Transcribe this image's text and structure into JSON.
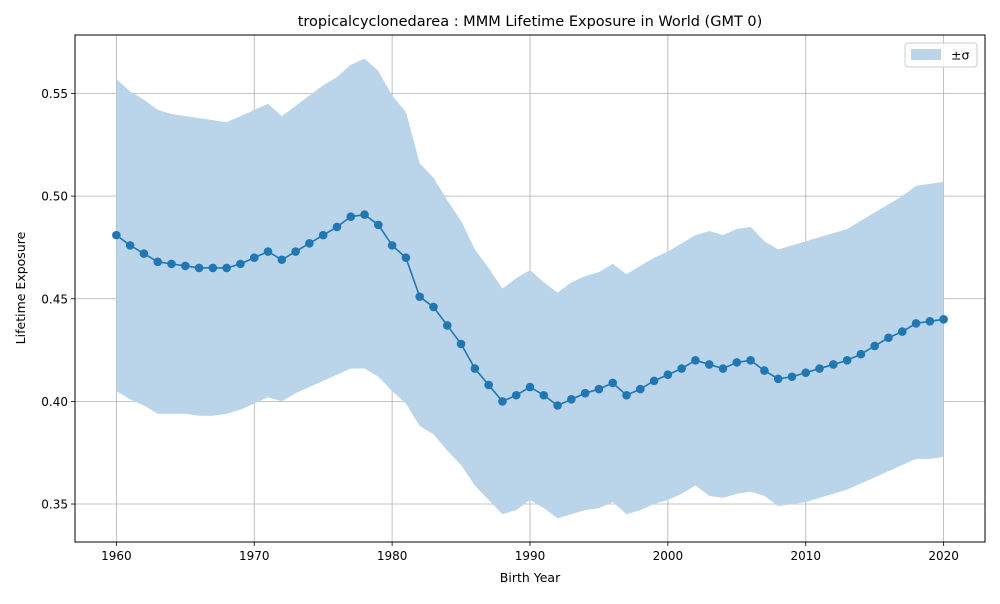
{
  "chart_data": {
    "type": "line",
    "title": "tropicalcyclonedarea : MMM Lifetime Exposure in World (GMT 0)",
    "xlabel": "Birth Year",
    "ylabel": "Lifetime Exposure",
    "xlim": [
      1957,
      2023
    ],
    "ylim": [
      0.3315,
      0.5785
    ],
    "xticks": [
      1960,
      1970,
      1980,
      1990,
      2000,
      2010,
      2020
    ],
    "yticks": [
      0.35,
      0.4,
      0.45,
      0.5,
      0.55
    ],
    "ytick_labels": [
      "0.35",
      "0.40",
      "0.45",
      "0.50",
      "0.55"
    ],
    "grid": true,
    "legend": {
      "position": "top-right",
      "entries": [
        "±σ"
      ]
    },
    "colors": {
      "line": "#1f77b4",
      "band": "#bad5e9",
      "grid": "#b0b0b0"
    },
    "x": [
      1960,
      1961,
      1962,
      1963,
      1964,
      1965,
      1966,
      1967,
      1968,
      1969,
      1970,
      1971,
      1972,
      1973,
      1974,
      1975,
      1976,
      1977,
      1978,
      1979,
      1980,
      1981,
      1982,
      1983,
      1984,
      1985,
      1986,
      1987,
      1988,
      1989,
      1990,
      1991,
      1992,
      1993,
      1994,
      1995,
      1996,
      1997,
      1998,
      1999,
      2000,
      2001,
      2002,
      2003,
      2004,
      2005,
      2006,
      2007,
      2008,
      2009,
      2010,
      2011,
      2012,
      2013,
      2014,
      2015,
      2016,
      2017,
      2018,
      2019,
      2020
    ],
    "series": [
      {
        "values": [
          0.481,
          0.476,
          0.472,
          0.468,
          0.467,
          0.466,
          0.465,
          0.465,
          0.465,
          0.467,
          0.47,
          0.473,
          0.469,
          0.473,
          0.477,
          0.481,
          0.485,
          0.49,
          0.491,
          0.486,
          0.476,
          0.47,
          0.451,
          0.446,
          0.437,
          0.428,
          0.416,
          0.408,
          0.4,
          0.403,
          0.407,
          0.403,
          0.398,
          0.401,
          0.404,
          0.406,
          0.409,
          0.403,
          0.406,
          0.41,
          0.413,
          0.416,
          0.42,
          0.418,
          0.416,
          0.419,
          0.42,
          0.415,
          0.411,
          0.412,
          0.414,
          0.416,
          0.418,
          0.42,
          0.423,
          0.427,
          0.431,
          0.434,
          0.438,
          0.439,
          0.44
        ]
      }
    ],
    "band": {
      "label": "±σ",
      "upper": [
        0.557,
        0.551,
        0.547,
        0.542,
        0.54,
        0.539,
        0.538,
        0.537,
        0.536,
        0.539,
        0.542,
        0.545,
        0.539,
        0.544,
        0.549,
        0.554,
        0.558,
        0.564,
        0.567,
        0.561,
        0.549,
        0.541,
        0.516,
        0.509,
        0.498,
        0.488,
        0.474,
        0.465,
        0.455,
        0.46,
        0.464,
        0.458,
        0.453,
        0.458,
        0.461,
        0.463,
        0.467,
        0.462,
        0.466,
        0.47,
        0.473,
        0.477,
        0.481,
        0.483,
        0.481,
        0.484,
        0.485,
        0.478,
        0.474,
        0.476,
        0.478,
        0.48,
        0.482,
        0.484,
        0.488,
        0.492,
        0.496,
        0.5,
        0.505,
        0.506,
        0.507
      ],
      "lower": [
        0.405,
        0.401,
        0.398,
        0.394,
        0.394,
        0.394,
        0.393,
        0.393,
        0.394,
        0.396,
        0.399,
        0.402,
        0.4,
        0.404,
        0.407,
        0.41,
        0.413,
        0.416,
        0.416,
        0.412,
        0.405,
        0.399,
        0.388,
        0.384,
        0.376,
        0.369,
        0.359,
        0.352,
        0.345,
        0.347,
        0.352,
        0.348,
        0.343,
        0.345,
        0.347,
        0.348,
        0.351,
        0.345,
        0.347,
        0.35,
        0.352,
        0.355,
        0.359,
        0.354,
        0.353,
        0.355,
        0.356,
        0.354,
        0.349,
        0.35,
        0.351,
        0.353,
        0.355,
        0.357,
        0.36,
        0.363,
        0.366,
        0.369,
        0.372,
        0.372,
        0.373
      ]
    }
  }
}
